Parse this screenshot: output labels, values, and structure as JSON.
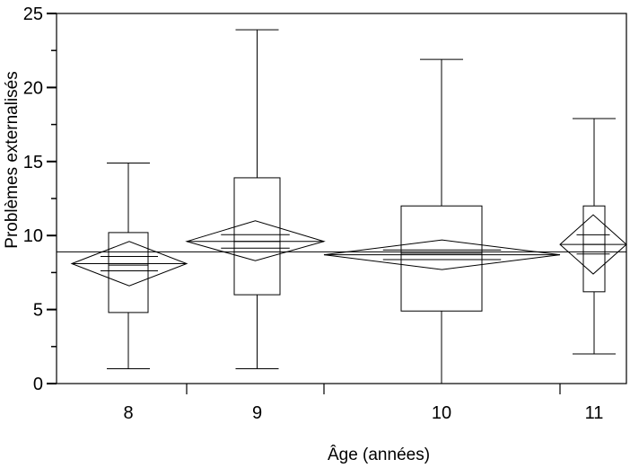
{
  "chart_data": {
    "type": "box",
    "xlabel": "Âge (années)",
    "ylabel": "Problèmes externalisés",
    "ylim": [
      0,
      25
    ],
    "yticks": [
      0,
      5,
      10,
      15,
      20,
      25
    ],
    "grand_mean": 8.9,
    "categories": [
      "8",
      "9",
      "10",
      "11"
    ],
    "groups": [
      {
        "label": "8",
        "min": 1,
        "q1": 4.8,
        "median": 8.0,
        "q3": 10.2,
        "max": 14.9,
        "mean": 8.1,
        "ci": [
          6.6,
          9.6
        ]
      },
      {
        "label": "9",
        "min": 1,
        "q1": 6.0,
        "median": 9.6,
        "q3": 13.9,
        "max": 23.9,
        "mean": 9.6,
        "ci": [
          8.3,
          11.0
        ]
      },
      {
        "label": "10",
        "min": 0,
        "q1": 4.9,
        "median": 8.8,
        "q3": 12.0,
        "max": 21.9,
        "mean": 8.7,
        "ci": [
          7.7,
          9.7
        ]
      },
      {
        "label": "11",
        "min": 2,
        "q1": 6.2,
        "median": 9.4,
        "q3": 12.0,
        "max": 17.9,
        "mean": 9.4,
        "ci": [
          7.4,
          11.4
        ]
      }
    ]
  }
}
